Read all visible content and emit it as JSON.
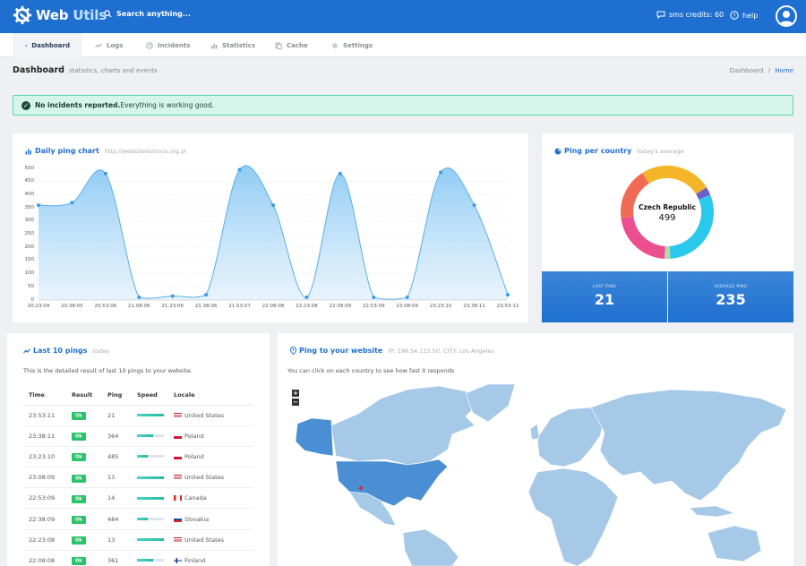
{
  "topbar": {
    "logo_word1": "Web",
    "logo_word2": "Utils",
    "search_label": "Search anything...",
    "sms_label": "sms credits: 60",
    "help_label": "help"
  },
  "tabs": [
    {
      "label": "Dashboard",
      "icon": "home-icon"
    },
    {
      "label": "Logs",
      "icon": "trend-icon"
    },
    {
      "label": "Incidents",
      "icon": "clock-icon"
    },
    {
      "label": "Statistics",
      "icon": "stats-icon"
    },
    {
      "label": "Cache",
      "icon": "copy-icon"
    },
    {
      "label": "Settings",
      "icon": "gear-icon"
    }
  ],
  "page": {
    "title": "Dashboard",
    "subtitle": "statistics, charts and events",
    "breadcrumb_1": "Dashboard",
    "breadcrumb_sep": "/",
    "breadcrumb_2": "Home"
  },
  "alert": {
    "bold": "No incidents reported.",
    "text": "Everything is working good."
  },
  "daily": {
    "title": "Daily ping chart",
    "subtitle": "http://websiteilartoria.org.pl"
  },
  "chart_data": {
    "type": "area",
    "title": "Daily ping chart",
    "x": [
      "20:23:04",
      "20:38:05",
      "20:53:06",
      "21:08:06",
      "21:23:06",
      "21:38:06",
      "21:53:07",
      "22:08:08",
      "22:23:08",
      "22:38:09",
      "22:53:09",
      "23:08:09",
      "23:23:10",
      "23:38:11",
      "23:53:11"
    ],
    "y": [
      360,
      370,
      480,
      10,
      15,
      20,
      495,
      360,
      10,
      480,
      10,
      10,
      485,
      360,
      20
    ],
    "ylim": [
      0,
      500
    ],
    "yticks": [
      0,
      50,
      100,
      150,
      200,
      250,
      300,
      350,
      400,
      450,
      500
    ],
    "grid": true,
    "color": "#5aaee8"
  },
  "country": {
    "title": "Ping per country",
    "subtitle": "today's average",
    "center_label": "Czech Republic",
    "center_value": "499",
    "slices": [
      {
        "value": 30,
        "color": "#2bc8ee"
      },
      {
        "value": 2,
        "color": "#b5d8a6"
      },
      {
        "value": 22,
        "color": "#ec4f8f"
      },
      {
        "value": 18,
        "color": "#f06a55"
      },
      {
        "value": 25,
        "color": "#f4b52a"
      },
      {
        "value": 3,
        "color": "#6b5fc9"
      }
    ],
    "last_label": "LAST PING",
    "last_value": "21",
    "avg_label": "AVERAGE PING",
    "avg_value": "235"
  },
  "pings": {
    "title": "Last 10 pings",
    "subtitle": "today",
    "desc": "This is the detailed result of last 10 pings to your website.",
    "headers": [
      "Time",
      "Result",
      "Ping",
      "Speed",
      "Locale"
    ],
    "rows": [
      {
        "time": "23:53:11",
        "result": "Ok",
        "ping": "21",
        "speed": 1.0,
        "locale": "United States",
        "flag": "us"
      },
      {
        "time": "23:38:11",
        "result": "Ok",
        "ping": "364",
        "speed": 0.6,
        "locale": "Poland",
        "flag": "pl"
      },
      {
        "time": "23:23:10",
        "result": "Ok",
        "ping": "485",
        "speed": 0.4,
        "locale": "Poland",
        "flag": "pl"
      },
      {
        "time": "23:08:09",
        "result": "Ok",
        "ping": "13",
        "speed": 1.0,
        "locale": "United States",
        "flag": "us"
      },
      {
        "time": "22:53:09",
        "result": "Ok",
        "ping": "14",
        "speed": 1.0,
        "locale": "Canada",
        "flag": "ca"
      },
      {
        "time": "22:38:09",
        "result": "Ok",
        "ping": "484",
        "speed": 0.4,
        "locale": "Slovakia",
        "flag": "sk"
      },
      {
        "time": "22:23:08",
        "result": "Ok",
        "ping": "13",
        "speed": 1.0,
        "locale": "United States",
        "flag": "us"
      },
      {
        "time": "22:08:08",
        "result": "Ok",
        "ping": "361",
        "speed": 0.6,
        "locale": "Finland",
        "flag": "fi"
      }
    ]
  },
  "map": {
    "title": "Ping to your website",
    "subtitle": "IP: 198.54.115.50, CITY: Los Angeles",
    "desc": "You can click on each country to see how fast it responds",
    "zoom_in": "+",
    "zoom_out": "−"
  }
}
